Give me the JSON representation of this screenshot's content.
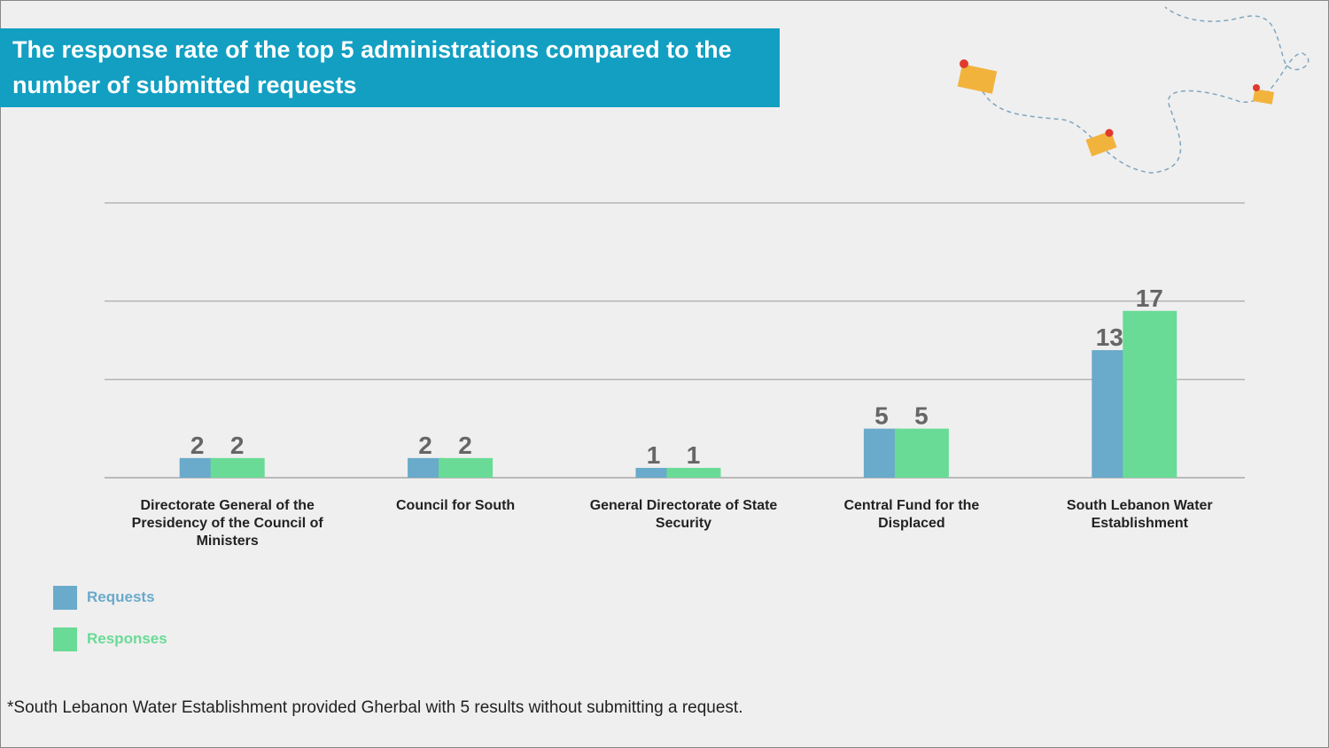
{
  "chart_data": {
    "type": "bar",
    "title": "The response rate of the top 5 administrations compared to the number of submitted requests",
    "categories": [
      "Directorate General of the Presidency of the Council of Ministers",
      "Council for South",
      "General Directorate of State Security",
      "Central Fund for the Displaced",
      "South Lebanon Water Establishment"
    ],
    "series": [
      {
        "name": "Requests",
        "color": "#6aaacb",
        "values": [
          2,
          2,
          1,
          5,
          13
        ]
      },
      {
        "name": "Responses",
        "color": "#69db96",
        "values": [
          2,
          2,
          1,
          5,
          17
        ]
      }
    ],
    "ylim": [
      0,
      28
    ],
    "yticks": [
      0,
      10,
      18,
      28
    ],
    "grid": true,
    "legend": "bottom-left",
    "footnote": "*South Lebanon Water Establishment provided Gherbal with 5 results without submitting a request."
  }
}
